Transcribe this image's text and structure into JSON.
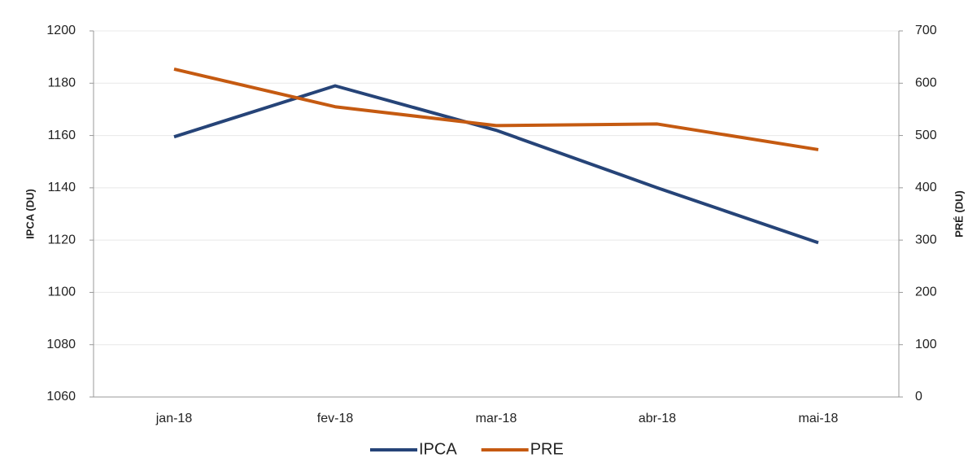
{
  "chart_data": {
    "type": "line",
    "categories": [
      "jan-18",
      "fev-18",
      "mar-18",
      "abr-18",
      "mai-18"
    ],
    "series": [
      {
        "name": "IPCA",
        "color": "#264478",
        "values": [
          1159.5,
          1179,
          1162,
          1140,
          1119
        ]
      },
      {
        "name": "PRE",
        "color": "#c55a11",
        "axis": "y2",
        "values": [
          627,
          555,
          519,
          522,
          473
        ]
      }
    ],
    "ylabel": "IPCA (DU)",
    "y2label": "PRÉ (DU)",
    "ylim": [
      1060,
      1200
    ],
    "yticks": [
      1060,
      1080,
      1100,
      1120,
      1140,
      1160,
      1180,
      1200
    ],
    "y2lim": [
      0,
      700
    ],
    "y2ticks": [
      0,
      100,
      200,
      300,
      400,
      500,
      600,
      700
    ],
    "grid": true,
    "legend": "bottom"
  }
}
